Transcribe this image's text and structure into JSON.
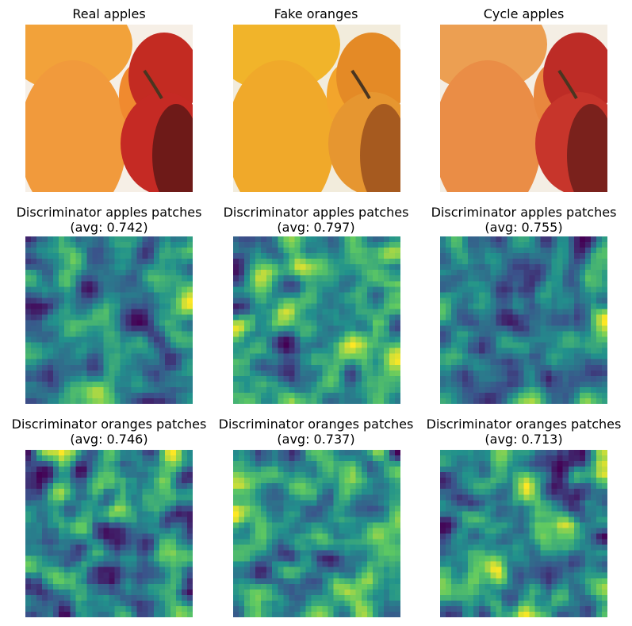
{
  "figure": {
    "row1": [
      {
        "title": "Real apples"
      },
      {
        "title": "Fake oranges"
      },
      {
        "title": "Cycle apples"
      }
    ],
    "row2": [
      {
        "title_line1": "Discriminator apples patches",
        "title_line2": "(avg: 0.742)"
      },
      {
        "title_line1": "Discriminator apples patches",
        "title_line2": "(avg: 0.797)"
      },
      {
        "title_line1": "Discriminator apples patches",
        "title_line2": "(avg: 0.755)"
      }
    ],
    "row3": [
      {
        "title_line1": "Discriminator oranges patches",
        "title_line2": "(avg: 0.746)"
      },
      {
        "title_line1": "Discriminator oranges patches",
        "title_line2": "(avg: 0.737)"
      },
      {
        "title_line1": "Discriminator oranges patches",
        "title_line2": "(avg: 0.713)"
      }
    ],
    "colormap": [
      "#440154",
      "#3b528b",
      "#21918c",
      "#5ec962",
      "#fde725"
    ]
  }
}
